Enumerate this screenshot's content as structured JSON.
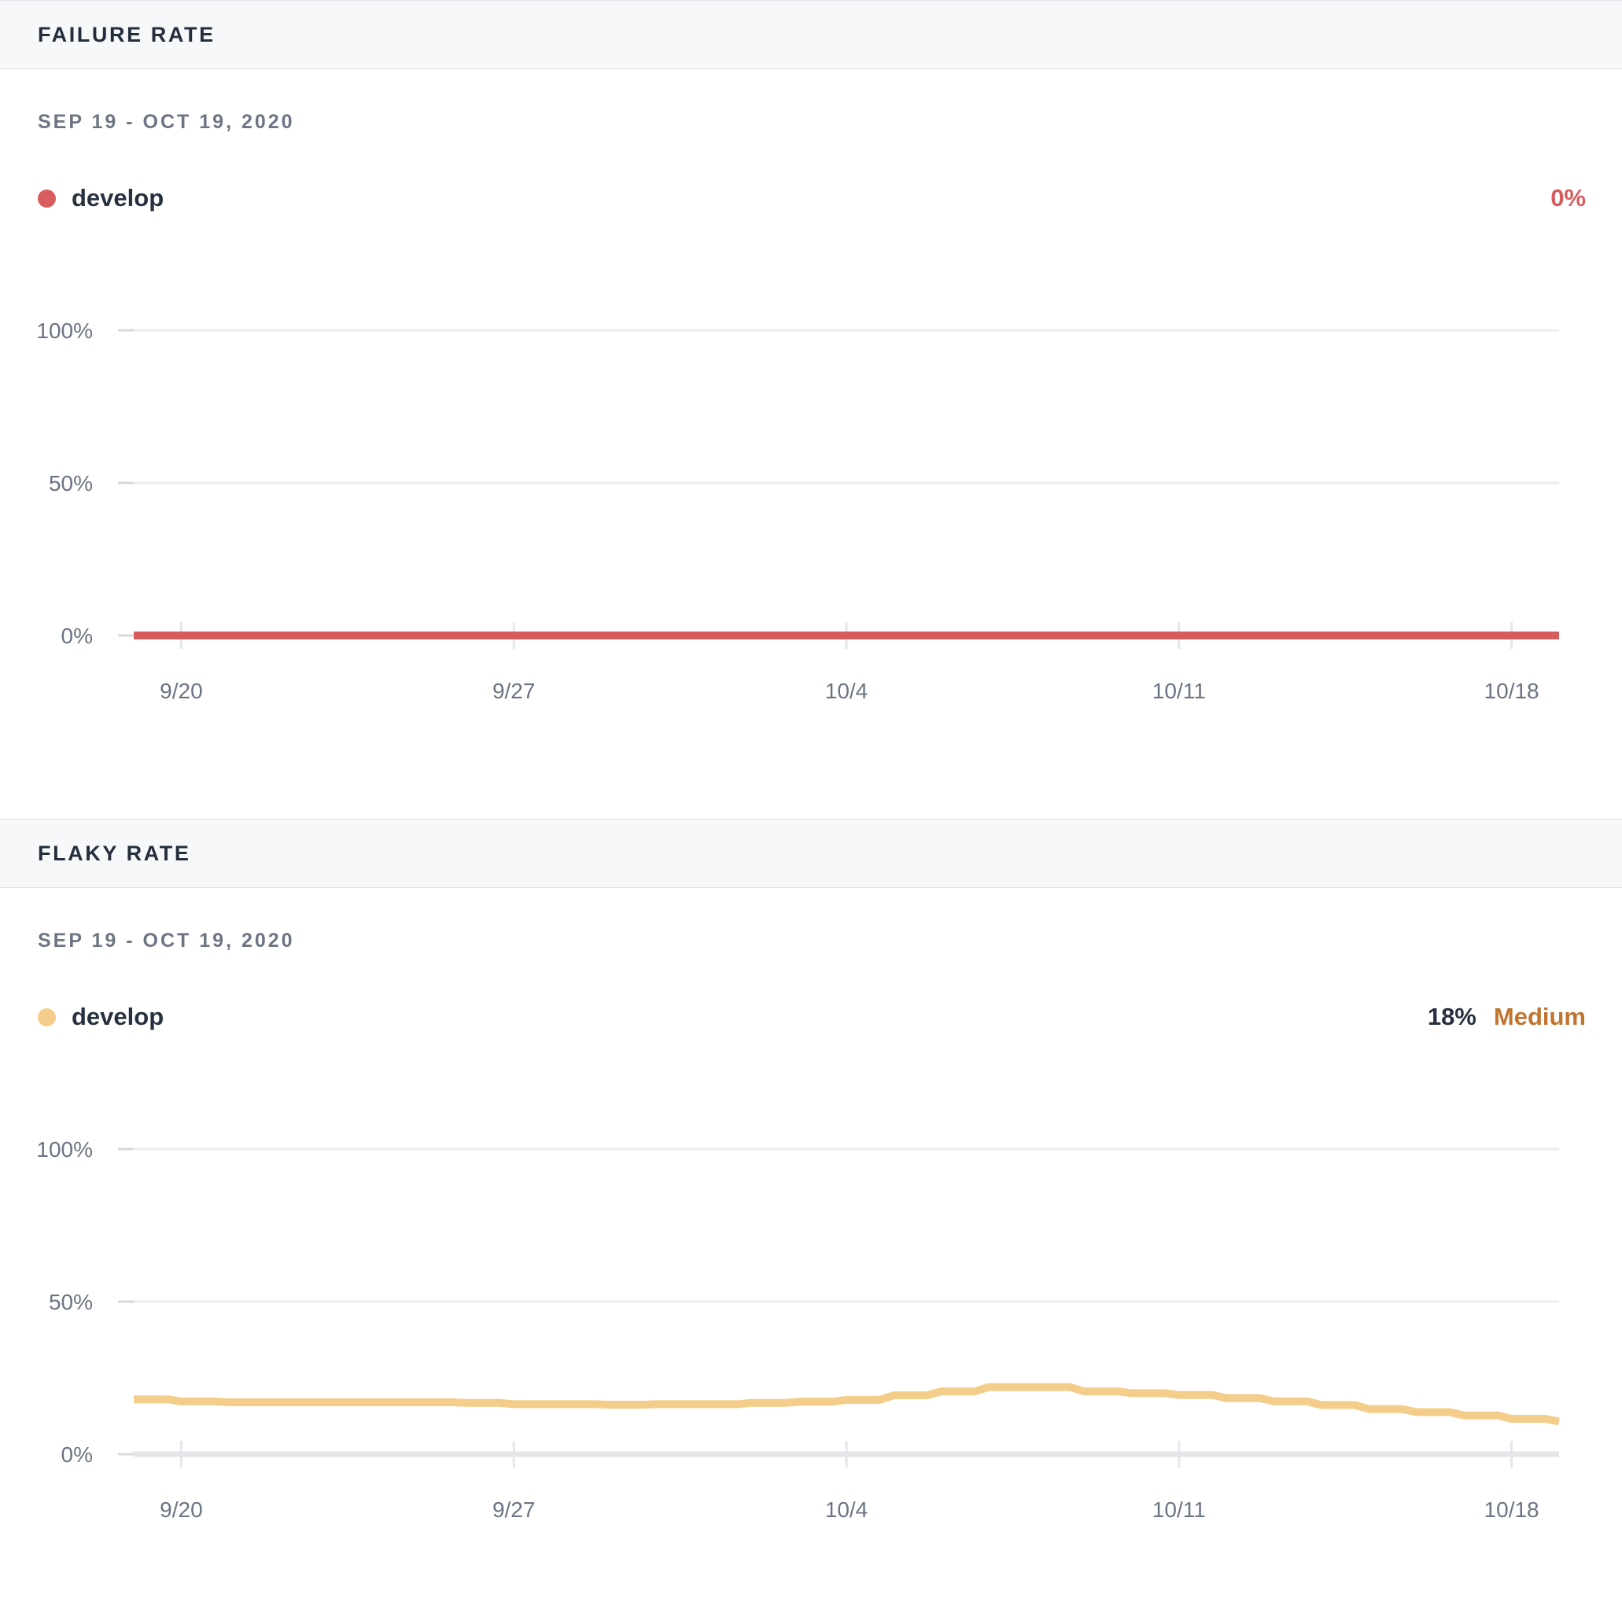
{
  "panels": [
    {
      "section_title": "FAILURE RATE",
      "date_range": "SEP 19 - OCT 19, 2020",
      "legend": {
        "label": "develop",
        "dot_icon": "circle-icon"
      },
      "summary": {
        "value": "0%"
      },
      "colors": {
        "series": "#d75c5e",
        "summary_value": "#d75c5e"
      }
    },
    {
      "section_title": "FLAKY RATE",
      "date_range": "SEP 19 - OCT 19, 2020",
      "legend": {
        "label": "develop",
        "dot_icon": "circle-icon"
      },
      "summary": {
        "value": "18%",
        "severity": "Medium"
      },
      "colors": {
        "series": "#f4cd8a",
        "summary_value": "#26303e",
        "severity": "#c0742e"
      }
    }
  ],
  "chart_data": [
    {
      "type": "line",
      "title": "FAILURE RATE",
      "xlabel": "",
      "ylabel": "",
      "ylim": [
        0,
        100
      ],
      "grid": "horizontal",
      "legend_position": "top-left",
      "x": [
        "9/19",
        "9/20",
        "9/21",
        "9/22",
        "9/23",
        "9/24",
        "9/25",
        "9/26",
        "9/27",
        "9/28",
        "9/29",
        "9/30",
        "10/1",
        "10/2",
        "10/3",
        "10/4",
        "10/5",
        "10/6",
        "10/7",
        "10/8",
        "10/9",
        "10/10",
        "10/11",
        "10/12",
        "10/13",
        "10/14",
        "10/15",
        "10/16",
        "10/17",
        "10/18",
        "10/19"
      ],
      "series": [
        {
          "name": "develop",
          "color": "#d75c5e",
          "values": [
            0,
            0,
            0,
            0,
            0,
            0,
            0,
            0,
            0,
            0,
            0,
            0,
            0,
            0,
            0,
            0,
            0,
            0,
            0,
            0,
            0,
            0,
            0,
            0,
            0,
            0,
            0,
            0,
            0,
            0,
            0
          ]
        }
      ],
      "y_ticks": [
        {
          "value": 100,
          "label": "100%"
        },
        {
          "value": 50,
          "label": "50%"
        },
        {
          "value": 0,
          "label": "0%"
        }
      ],
      "x_tick_labels": [
        "9/20",
        "9/27",
        "10/4",
        "10/11",
        "10/18"
      ],
      "x_tick_day_indices": [
        1,
        8,
        15,
        22,
        29
      ]
    },
    {
      "type": "line",
      "title": "FLAKY RATE",
      "xlabel": "",
      "ylabel": "",
      "ylim": [
        0,
        100
      ],
      "grid": "horizontal",
      "legend_position": "top-left",
      "x": [
        "9/19",
        "9/20",
        "9/21",
        "9/22",
        "9/23",
        "9/24",
        "9/25",
        "9/26",
        "9/27",
        "9/28",
        "9/29",
        "9/30",
        "10/1",
        "10/2",
        "10/3",
        "10/4",
        "10/5",
        "10/6",
        "10/7",
        "10/8",
        "10/9",
        "10/10",
        "10/11",
        "10/12",
        "10/13",
        "10/14",
        "10/15",
        "10/16",
        "10/17",
        "10/18",
        "10/19"
      ],
      "series": [
        {
          "name": "develop",
          "color": "#f4cd8a",
          "values": [
            18,
            17.3,
            17,
            17,
            17,
            17,
            17,
            16.8,
            16.4,
            16.4,
            16.2,
            16.4,
            16.4,
            16.8,
            17.2,
            17.8,
            19.3,
            20.6,
            22,
            22,
            20.6,
            20,
            19.4,
            18.4,
            17.3,
            16.1,
            14.8,
            13.8,
            12.7,
            11.6,
            10.7
          ]
        }
      ],
      "y_ticks": [
        {
          "value": 100,
          "label": "100%"
        },
        {
          "value": 50,
          "label": "50%"
        },
        {
          "value": 0,
          "label": "0%"
        }
      ],
      "x_tick_labels": [
        "9/20",
        "9/27",
        "10/4",
        "10/11",
        "10/18"
      ],
      "x_tick_day_indices": [
        1,
        8,
        15,
        22,
        29
      ]
    }
  ]
}
